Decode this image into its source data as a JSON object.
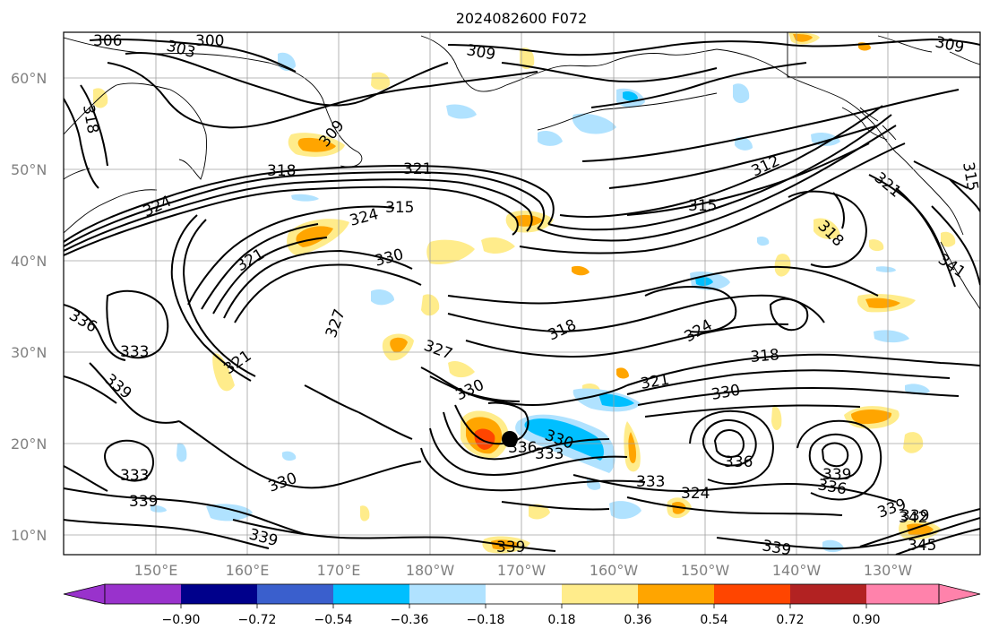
{
  "title": "2024082600 F072",
  "lat_labels": [
    "60°N",
    "50°N",
    "40°N",
    "30°N",
    "20°N",
    "10°N"
  ],
  "lon_labels": [
    "150°E",
    "160°E",
    "170°E",
    "180°W",
    "170°W",
    "160°W",
    "150°W",
    "140°W",
    "130°W"
  ],
  "colorbar": {
    "ticks": [
      "−0.90",
      "−0.72",
      "−0.54",
      "−0.36",
      "−0.18",
      "0.18",
      "0.36",
      "0.54",
      "0.72",
      "0.90"
    ],
    "colors": [
      "#9932cc",
      "#00008b",
      "#3a5fcd",
      "#00bfff",
      "#b0e2ff",
      "#ffffff",
      "#ffec8b",
      "#ffa500",
      "#ff4500",
      "#b22222",
      "#ff82ab"
    ]
  },
  "contour_labels": [
    "306",
    "303",
    "300",
    "309",
    "309",
    "318",
    "309",
    "318",
    "321",
    "324",
    "312",
    "315",
    "321",
    "315",
    "324",
    "321",
    "330",
    "315",
    "318",
    "341",
    "327",
    "336",
    "333",
    "339",
    "321",
    "327",
    "318",
    "324",
    "318",
    "330",
    "321",
    "330",
    "336",
    "330",
    "333",
    "333",
    "324",
    "336",
    "339",
    "336",
    "339",
    "339",
    "342",
    "333",
    "330",
    "339",
    "339",
    "339",
    "345",
    "339"
  ],
  "colors": {
    "positive": "#ffa500",
    "negative": "#00bfff",
    "contour": "#000000",
    "grid": "#a0a0a0",
    "tc_marker": "#000000"
  }
}
